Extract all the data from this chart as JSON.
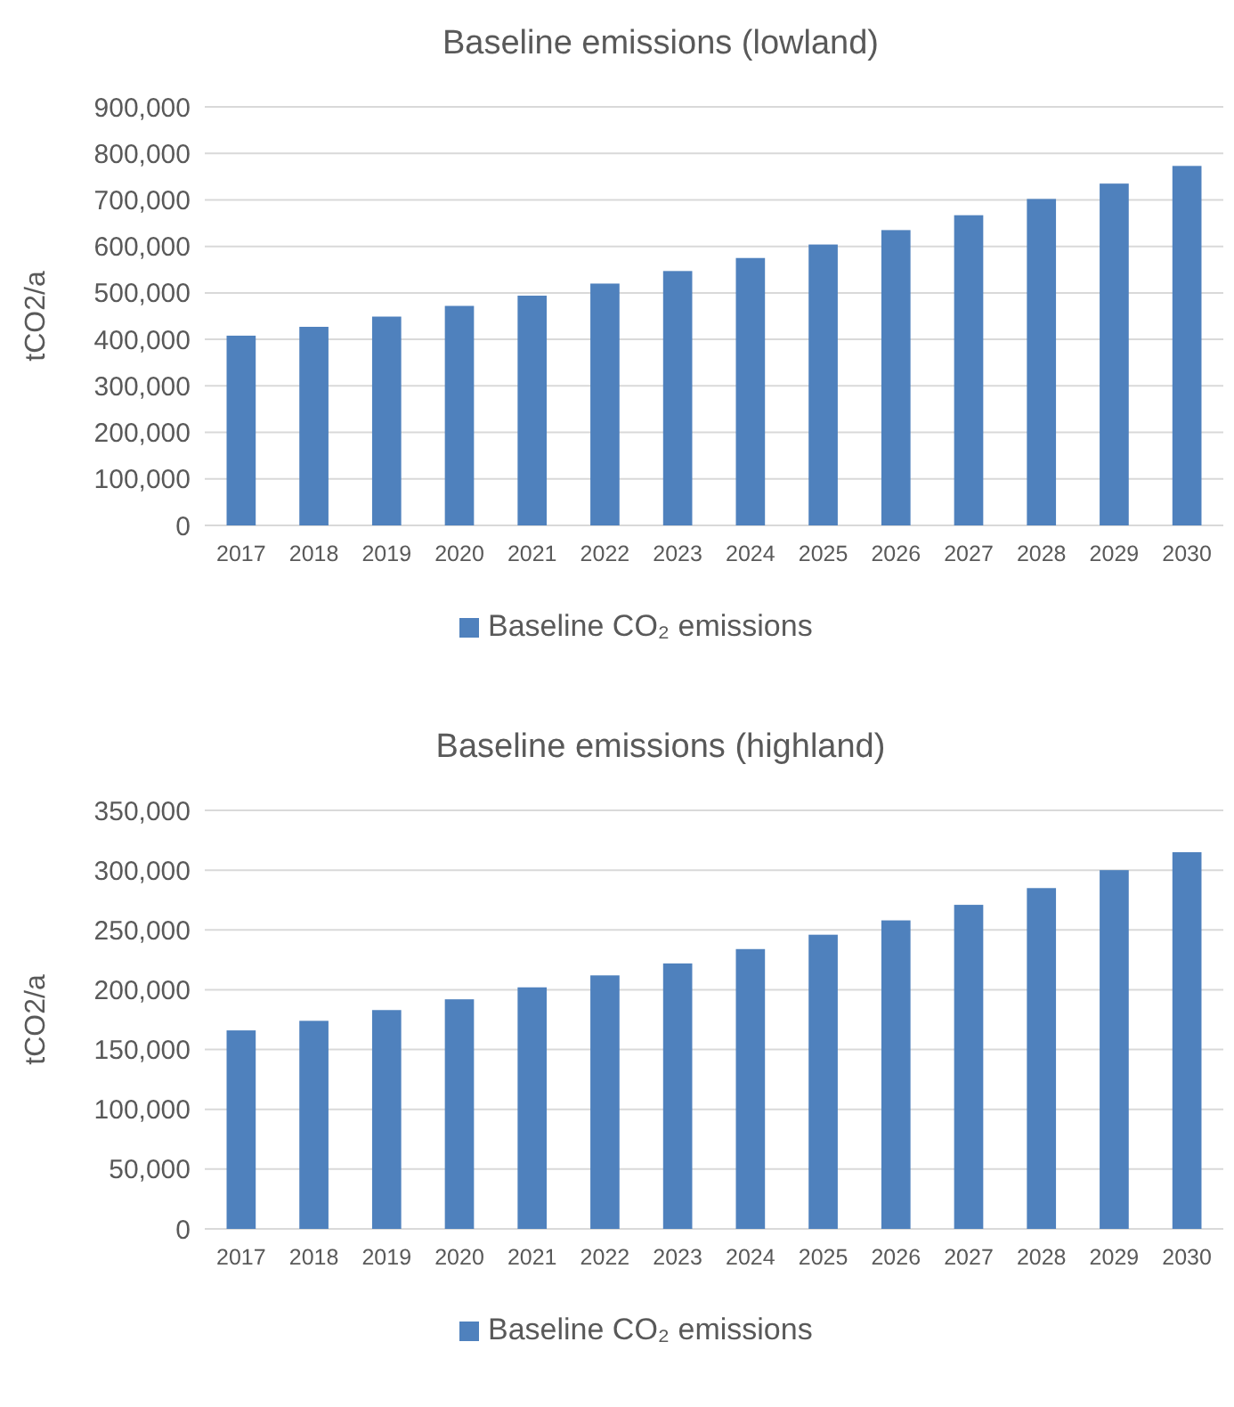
{
  "chart_data": [
    {
      "type": "bar",
      "title": "Baseline emissions (lowland)",
      "ylabel": "tCO2/a",
      "categories": [
        "2017",
        "2018",
        "2019",
        "2020",
        "2021",
        "2022",
        "2023",
        "2024",
        "2025",
        "2026",
        "2027",
        "2028",
        "2029",
        "2030"
      ],
      "series": [
        {
          "name": "Baseline CO₂ emissions",
          "color": "#4f81bd",
          "values": [
            408000,
            427000,
            449000,
            472000,
            494000,
            520000,
            547000,
            575000,
            604000,
            635000,
            667000,
            702000,
            735000,
            773000
          ]
        }
      ],
      "ylim": [
        0,
        900000
      ],
      "yticks": [
        {
          "value": 0,
          "label": "0"
        },
        {
          "value": 100000,
          "label": "100,000"
        },
        {
          "value": 200000,
          "label": "200,000"
        },
        {
          "value": 300000,
          "label": "300,000"
        },
        {
          "value": 400000,
          "label": "400,000"
        },
        {
          "value": 500000,
          "label": "500,000"
        },
        {
          "value": 600000,
          "label": "600,000"
        },
        {
          "value": 700000,
          "label": "700,000"
        },
        {
          "value": 800000,
          "label": "800,000"
        },
        {
          "value": 900000,
          "label": "900,000"
        }
      ],
      "grid": "y",
      "legend": "bottom"
    },
    {
      "type": "bar",
      "title": "Baseline emissions (highland)",
      "ylabel": "tCO2/a",
      "categories": [
        "2017",
        "2018",
        "2019",
        "2020",
        "2021",
        "2022",
        "2023",
        "2024",
        "2025",
        "2026",
        "2027",
        "2028",
        "2029",
        "2030"
      ],
      "series": [
        {
          "name": "Baseline CO₂ emissions",
          "color": "#4f81bd",
          "values": [
            166000,
            174000,
            183000,
            192000,
            202000,
            212000,
            222000,
            234000,
            246000,
            258000,
            271000,
            285000,
            300000,
            315000
          ]
        }
      ],
      "ylim": [
        0,
        350000
      ],
      "yticks": [
        {
          "value": 0,
          "label": "0"
        },
        {
          "value": 50000,
          "label": "50,000"
        },
        {
          "value": 100000,
          "label": "100,000"
        },
        {
          "value": 150000,
          "label": "150,000"
        },
        {
          "value": 200000,
          "label": "200,000"
        },
        {
          "value": 250000,
          "label": "250,000"
        },
        {
          "value": 300000,
          "label": "300,000"
        },
        {
          "value": 350000,
          "label": "350,000"
        }
      ],
      "grid": "y",
      "legend": "bottom"
    }
  ]
}
